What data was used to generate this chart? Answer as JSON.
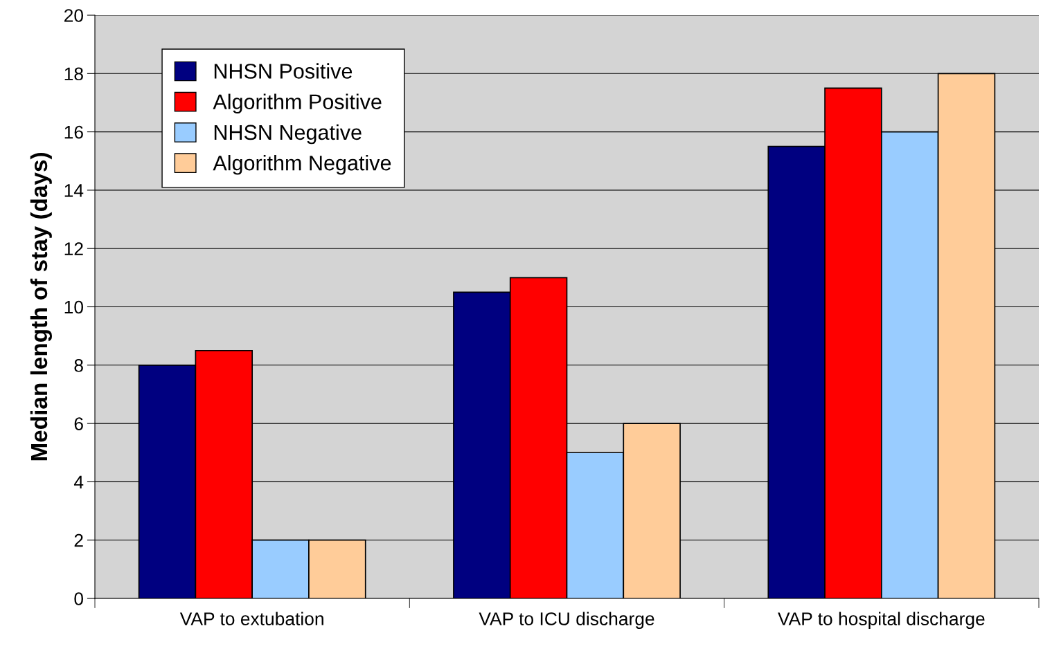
{
  "chart_data": {
    "type": "bar",
    "ylabel": "Median length of stay (days)",
    "categories": [
      "VAP to extubation",
      "VAP to ICU discharge",
      "VAP to hospital discharge"
    ],
    "series": [
      {
        "name": "NHSN Positive",
        "color": "#000080",
        "values": [
          8,
          10.5,
          15.5
        ]
      },
      {
        "name": "Algorithm Positive",
        "color": "#ff0000",
        "values": [
          8.5,
          11,
          17.5
        ]
      },
      {
        "name": "NHSN Negative",
        "color": "#99ccff",
        "values": [
          2,
          5,
          16
        ]
      },
      {
        "name": "Algorithm Negative",
        "color": "#ffcc99",
        "values": [
          2,
          6,
          18
        ]
      }
    ],
    "ylim": [
      0,
      20
    ],
    "yticks": [
      0,
      2,
      4,
      6,
      8,
      10,
      12,
      14,
      16,
      18,
      20
    ],
    "grid": "y",
    "legend": "top left"
  }
}
